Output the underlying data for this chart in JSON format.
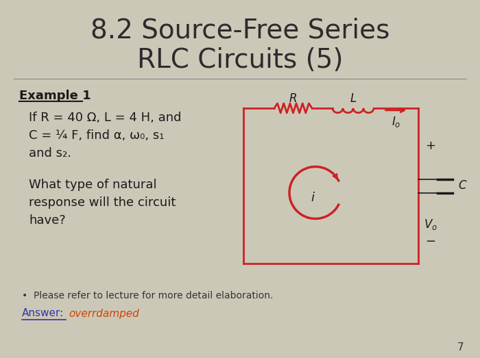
{
  "title_line1": "8.2 Source-Free Series",
  "title_line2": "RLC Circuits (5)",
  "title_fontsize": 28,
  "title_color": "#2c2c2c",
  "bg_color": "#ccc8b8",
  "example_label": "Example 1",
  "text_line1": "If R = 40 Ω, L = 4 H, and",
  "text_line2": "C = ¼ F, find α, ω₀, s₁",
  "text_line3": "and s₂.",
  "text_line4": "What type of natural",
  "text_line5": "response will the circuit",
  "text_line6": "have?",
  "text_color": "#1a1a1a",
  "note_text": "Please refer to lecture for more detail elaboration.",
  "answer_label": "Answer:",
  "answer_value": "overrdamped",
  "answer_color": "#cc4400",
  "circuit_color": "#cc2222",
  "page_number": "7"
}
